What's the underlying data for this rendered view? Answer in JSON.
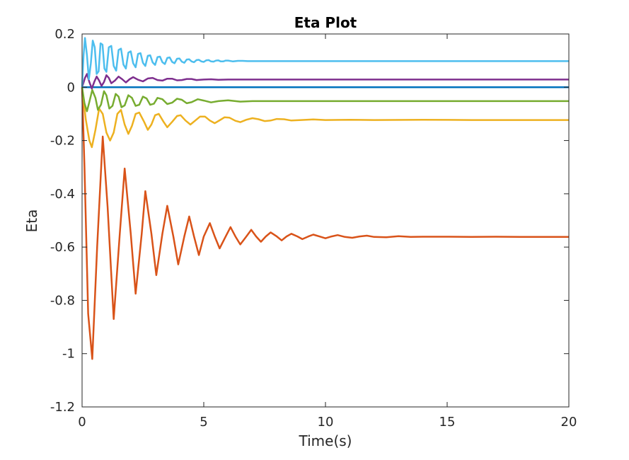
{
  "chart_data": {
    "type": "line",
    "title": "Eta Plot",
    "xlabel": "Time(s)",
    "ylabel": "Eta",
    "xlim": [
      0,
      20
    ],
    "ylim": [
      -1.2,
      0.2
    ],
    "xticks": [
      0,
      5,
      10,
      15,
      20
    ],
    "xtick_labels": [
      "0",
      "5",
      "10",
      "15",
      "20"
    ],
    "yticks": [
      0.2,
      0,
      -0.2,
      -0.4,
      -0.6,
      -0.8,
      -1,
      -1.2
    ],
    "ytick_labels": [
      "0.2",
      "0",
      "-0.2",
      "-0.4",
      "-0.6",
      "-0.8",
      "-1",
      "-1.2"
    ],
    "grid": false,
    "legend": "none",
    "series": [
      {
        "color": "#0072BD",
        "points": [
          [
            0,
            0
          ],
          [
            20,
            0
          ]
        ]
      },
      {
        "color": "#D95319",
        "points": [
          [
            0,
            0
          ],
          [
            0.1,
            -0.3
          ],
          [
            0.25,
            -0.85
          ],
          [
            0.42,
            -1.02
          ],
          [
            0.62,
            -0.6
          ],
          [
            0.85,
            -0.185
          ],
          [
            1.05,
            -0.45
          ],
          [
            1.3,
            -0.87
          ],
          [
            1.55,
            -0.55
          ],
          [
            1.75,
            -0.305
          ],
          [
            2.0,
            -0.55
          ],
          [
            2.2,
            -0.775
          ],
          [
            2.45,
            -0.55
          ],
          [
            2.6,
            -0.39
          ],
          [
            2.85,
            -0.55
          ],
          [
            3.05,
            -0.705
          ],
          [
            3.3,
            -0.55
          ],
          [
            3.5,
            -0.445
          ],
          [
            3.75,
            -0.56
          ],
          [
            3.95,
            -0.665
          ],
          [
            4.2,
            -0.56
          ],
          [
            4.4,
            -0.485
          ],
          [
            4.6,
            -0.56
          ],
          [
            4.8,
            -0.63
          ],
          [
            5.0,
            -0.56
          ],
          [
            5.25,
            -0.51
          ],
          [
            5.45,
            -0.56
          ],
          [
            5.65,
            -0.605
          ],
          [
            5.9,
            -0.56
          ],
          [
            6.1,
            -0.525
          ],
          [
            6.3,
            -0.56
          ],
          [
            6.5,
            -0.59
          ],
          [
            6.75,
            -0.56
          ],
          [
            6.95,
            -0.535
          ],
          [
            7.15,
            -0.56
          ],
          [
            7.35,
            -0.58
          ],
          [
            7.55,
            -0.56
          ],
          [
            7.75,
            -0.545
          ],
          [
            8.0,
            -0.56
          ],
          [
            8.2,
            -0.575
          ],
          [
            8.4,
            -0.56
          ],
          [
            8.6,
            -0.55
          ],
          [
            8.85,
            -0.56
          ],
          [
            9.05,
            -0.57
          ],
          [
            9.3,
            -0.56
          ],
          [
            9.5,
            -0.553
          ],
          [
            9.75,
            -0.56
          ],
          [
            10.0,
            -0.567
          ],
          [
            10.25,
            -0.56
          ],
          [
            10.5,
            -0.555
          ],
          [
            10.8,
            -0.562
          ],
          [
            11.1,
            -0.565
          ],
          [
            11.4,
            -0.56
          ],
          [
            11.7,
            -0.557
          ],
          [
            12.0,
            -0.562
          ],
          [
            12.5,
            -0.563
          ],
          [
            13.0,
            -0.559
          ],
          [
            13.5,
            -0.562
          ],
          [
            14.0,
            -0.561
          ],
          [
            15.0,
            -0.561
          ],
          [
            16.0,
            -0.562
          ],
          [
            17.0,
            -0.561
          ],
          [
            18.0,
            -0.562
          ],
          [
            20.0,
            -0.562
          ]
        ]
      },
      {
        "color": "#EDB120",
        "points": [
          [
            0,
            0
          ],
          [
            0.15,
            -0.12
          ],
          [
            0.3,
            -0.2
          ],
          [
            0.4,
            -0.225
          ],
          [
            0.55,
            -0.16
          ],
          [
            0.7,
            -0.08
          ],
          [
            0.85,
            -0.1
          ],
          [
            1.0,
            -0.17
          ],
          [
            1.15,
            -0.2
          ],
          [
            1.3,
            -0.17
          ],
          [
            1.45,
            -0.1
          ],
          [
            1.6,
            -0.085
          ],
          [
            1.75,
            -0.14
          ],
          [
            1.9,
            -0.175
          ],
          [
            2.05,
            -0.145
          ],
          [
            2.2,
            -0.1
          ],
          [
            2.35,
            -0.095
          ],
          [
            2.55,
            -0.13
          ],
          [
            2.7,
            -0.16
          ],
          [
            2.85,
            -0.14
          ],
          [
            3.0,
            -0.105
          ],
          [
            3.15,
            -0.1
          ],
          [
            3.35,
            -0.13
          ],
          [
            3.5,
            -0.15
          ],
          [
            3.7,
            -0.13
          ],
          [
            3.9,
            -0.108
          ],
          [
            4.05,
            -0.105
          ],
          [
            4.25,
            -0.125
          ],
          [
            4.45,
            -0.14
          ],
          [
            4.65,
            -0.125
          ],
          [
            4.85,
            -0.11
          ],
          [
            5.05,
            -0.11
          ],
          [
            5.25,
            -0.125
          ],
          [
            5.45,
            -0.135
          ],
          [
            5.65,
            -0.124
          ],
          [
            5.85,
            -0.113
          ],
          [
            6.05,
            -0.114
          ],
          [
            6.3,
            -0.126
          ],
          [
            6.5,
            -0.131
          ],
          [
            6.75,
            -0.122
          ],
          [
            7.0,
            -0.116
          ],
          [
            7.25,
            -0.12
          ],
          [
            7.5,
            -0.127
          ],
          [
            7.75,
            -0.125
          ],
          [
            8.0,
            -0.119
          ],
          [
            8.3,
            -0.12
          ],
          [
            8.6,
            -0.125
          ],
          [
            9.0,
            -0.123
          ],
          [
            9.5,
            -0.121
          ],
          [
            10.0,
            -0.123
          ],
          [
            11.0,
            -0.122
          ],
          [
            12.0,
            -0.123
          ],
          [
            14.0,
            -0.122
          ],
          [
            16.0,
            -0.123
          ],
          [
            20.0,
            -0.123
          ]
        ]
      },
      {
        "color": "#7E2F8E",
        "points": [
          [
            0,
            0
          ],
          [
            0.12,
            0.035
          ],
          [
            0.2,
            0.05
          ],
          [
            0.3,
            0.02
          ],
          [
            0.4,
            -0.005
          ],
          [
            0.5,
            0.02
          ],
          [
            0.6,
            0.04
          ],
          [
            0.7,
            0.025
          ],
          [
            0.8,
            0.005
          ],
          [
            0.9,
            0.02
          ],
          [
            1.0,
            0.045
          ],
          [
            1.1,
            0.035
          ],
          [
            1.2,
            0.015
          ],
          [
            1.35,
            0.025
          ],
          [
            1.5,
            0.04
          ],
          [
            1.65,
            0.03
          ],
          [
            1.8,
            0.018
          ],
          [
            1.95,
            0.03
          ],
          [
            2.1,
            0.038
          ],
          [
            2.3,
            0.028
          ],
          [
            2.5,
            0.022
          ],
          [
            2.7,
            0.033
          ],
          [
            2.9,
            0.035
          ],
          [
            3.1,
            0.027
          ],
          [
            3.3,
            0.025
          ],
          [
            3.5,
            0.032
          ],
          [
            3.7,
            0.032
          ],
          [
            3.9,
            0.026
          ],
          [
            4.1,
            0.027
          ],
          [
            4.3,
            0.031
          ],
          [
            4.5,
            0.031
          ],
          [
            4.7,
            0.027
          ],
          [
            5.0,
            0.029
          ],
          [
            5.3,
            0.03
          ],
          [
            5.6,
            0.028
          ],
          [
            6.0,
            0.029
          ],
          [
            7.0,
            0.029
          ],
          [
            10.0,
            0.029
          ],
          [
            20.0,
            0.029
          ]
        ]
      },
      {
        "color": "#77AC30",
        "points": [
          [
            0,
            0
          ],
          [
            0.1,
            -0.06
          ],
          [
            0.2,
            -0.09
          ],
          [
            0.3,
            -0.055
          ],
          [
            0.42,
            -0.01
          ],
          [
            0.55,
            -0.04
          ],
          [
            0.65,
            -0.085
          ],
          [
            0.78,
            -0.065
          ],
          [
            0.9,
            -0.015
          ],
          [
            1.0,
            -0.03
          ],
          [
            1.12,
            -0.08
          ],
          [
            1.25,
            -0.07
          ],
          [
            1.38,
            -0.025
          ],
          [
            1.5,
            -0.035
          ],
          [
            1.62,
            -0.075
          ],
          [
            1.75,
            -0.068
          ],
          [
            1.9,
            -0.03
          ],
          [
            2.05,
            -0.04
          ],
          [
            2.2,
            -0.07
          ],
          [
            2.35,
            -0.066
          ],
          [
            2.5,
            -0.035
          ],
          [
            2.65,
            -0.042
          ],
          [
            2.8,
            -0.066
          ],
          [
            2.95,
            -0.062
          ],
          [
            3.1,
            -0.04
          ],
          [
            3.3,
            -0.045
          ],
          [
            3.5,
            -0.063
          ],
          [
            3.7,
            -0.058
          ],
          [
            3.9,
            -0.043
          ],
          [
            4.1,
            -0.047
          ],
          [
            4.3,
            -0.06
          ],
          [
            4.5,
            -0.056
          ],
          [
            4.75,
            -0.045
          ],
          [
            5.0,
            -0.05
          ],
          [
            5.3,
            -0.057
          ],
          [
            5.6,
            -0.052
          ],
          [
            6.0,
            -0.049
          ],
          [
            6.5,
            -0.054
          ],
          [
            7.0,
            -0.052
          ],
          [
            8.0,
            -0.052
          ],
          [
            10.0,
            -0.052
          ],
          [
            20.0,
            -0.052
          ]
        ]
      },
      {
        "color": "#4DBEEE",
        "points": [
          [
            0,
            0
          ],
          [
            0.06,
            0.12
          ],
          [
            0.12,
            0.185
          ],
          [
            0.2,
            0.12
          ],
          [
            0.28,
            0.03
          ],
          [
            0.36,
            0.09
          ],
          [
            0.44,
            0.175
          ],
          [
            0.52,
            0.15
          ],
          [
            0.6,
            0.05
          ],
          [
            0.68,
            0.06
          ],
          [
            0.76,
            0.165
          ],
          [
            0.84,
            0.16
          ],
          [
            0.92,
            0.07
          ],
          [
            1.0,
            0.058
          ],
          [
            1.1,
            0.15
          ],
          [
            1.2,
            0.155
          ],
          [
            1.3,
            0.08
          ],
          [
            1.4,
            0.062
          ],
          [
            1.5,
            0.14
          ],
          [
            1.6,
            0.145
          ],
          [
            1.7,
            0.085
          ],
          [
            1.8,
            0.07
          ],
          [
            1.9,
            0.13
          ],
          [
            2.0,
            0.135
          ],
          [
            2.1,
            0.09
          ],
          [
            2.2,
            0.075
          ],
          [
            2.3,
            0.125
          ],
          [
            2.4,
            0.128
          ],
          [
            2.5,
            0.092
          ],
          [
            2.6,
            0.08
          ],
          [
            2.7,
            0.118
          ],
          [
            2.8,
            0.12
          ],
          [
            2.9,
            0.093
          ],
          [
            3.0,
            0.084
          ],
          [
            3.1,
            0.113
          ],
          [
            3.2,
            0.115
          ],
          [
            3.3,
            0.094
          ],
          [
            3.4,
            0.087
          ],
          [
            3.5,
            0.11
          ],
          [
            3.6,
            0.112
          ],
          [
            3.7,
            0.095
          ],
          [
            3.8,
            0.09
          ],
          [
            3.9,
            0.107
          ],
          [
            4.0,
            0.108
          ],
          [
            4.1,
            0.096
          ],
          [
            4.2,
            0.092
          ],
          [
            4.3,
            0.104
          ],
          [
            4.4,
            0.105
          ],
          [
            4.5,
            0.097
          ],
          [
            4.6,
            0.094
          ],
          [
            4.7,
            0.102
          ],
          [
            4.8,
            0.103
          ],
          [
            4.9,
            0.097
          ],
          [
            5.0,
            0.095
          ],
          [
            5.1,
            0.101
          ],
          [
            5.2,
            0.102
          ],
          [
            5.3,
            0.097
          ],
          [
            5.4,
            0.096
          ],
          [
            5.5,
            0.1
          ],
          [
            5.6,
            0.101
          ],
          [
            5.7,
            0.097
          ],
          [
            5.8,
            0.097
          ],
          [
            5.9,
            0.1
          ],
          [
            6.0,
            0.1
          ],
          [
            6.2,
            0.097
          ],
          [
            6.4,
            0.099
          ],
          [
            6.6,
            0.099
          ],
          [
            6.8,
            0.098
          ],
          [
            7.0,
            0.098
          ],
          [
            8.0,
            0.098
          ],
          [
            10.0,
            0.098
          ],
          [
            20.0,
            0.098
          ]
        ]
      }
    ]
  }
}
